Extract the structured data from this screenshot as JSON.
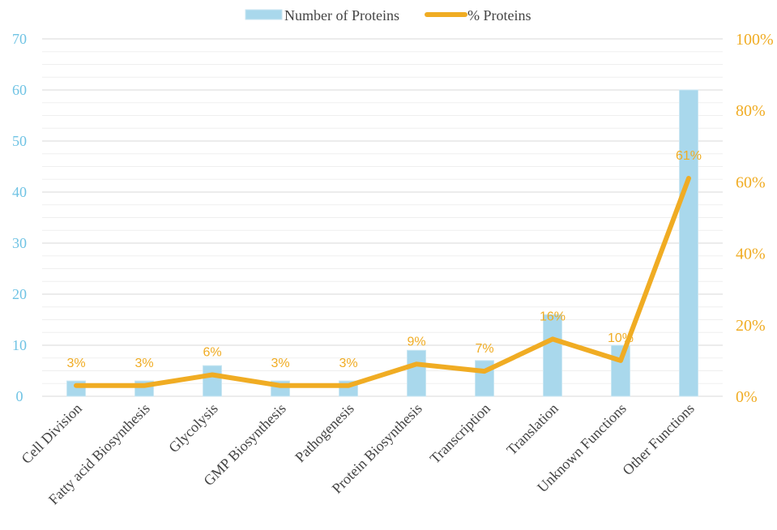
{
  "chart_data": {
    "type": "bar",
    "categories": [
      "Cell Division",
      "Fatty acid Biosynthesis",
      "Glycolysis",
      "GMP Biosynthesis",
      "Pathogenesis",
      "Protein Biosynthesis",
      "Transcription",
      "Translation",
      "Unknown Functions",
      "Other Functions"
    ],
    "series": [
      {
        "name": "Number of Proteins",
        "type": "bar",
        "axis": "left",
        "color": "#a9d8ec",
        "values": [
          3,
          3,
          6,
          3,
          3,
          9,
          7,
          16,
          10,
          60
        ]
      },
      {
        "name": "% Proteins",
        "type": "line",
        "axis": "right",
        "color": "#f0ac23",
        "values": [
          3,
          3,
          6,
          3,
          3,
          9,
          7,
          16,
          10,
          61
        ]
      }
    ],
    "data_labels": [
      "3%",
      "3%",
      "6%",
      "3%",
      "3%",
      "9%",
      "7%",
      "16%",
      "10%",
      "61%"
    ],
    "y_left": {
      "ylim": [
        0,
        70
      ],
      "ticks": [
        "0",
        "10",
        "20",
        "30",
        "40",
        "50",
        "60",
        "70"
      ],
      "color": "#6fc3e4"
    },
    "y_right": {
      "ylim": [
        0,
        100
      ],
      "ticks": [
        "0%",
        "20%",
        "40%",
        "60%",
        "80%",
        "100%"
      ],
      "color": "#f0ac23"
    },
    "legend": {
      "position": "top"
    },
    "grid": true,
    "title": "",
    "xlabel": "",
    "ylabel": ""
  }
}
